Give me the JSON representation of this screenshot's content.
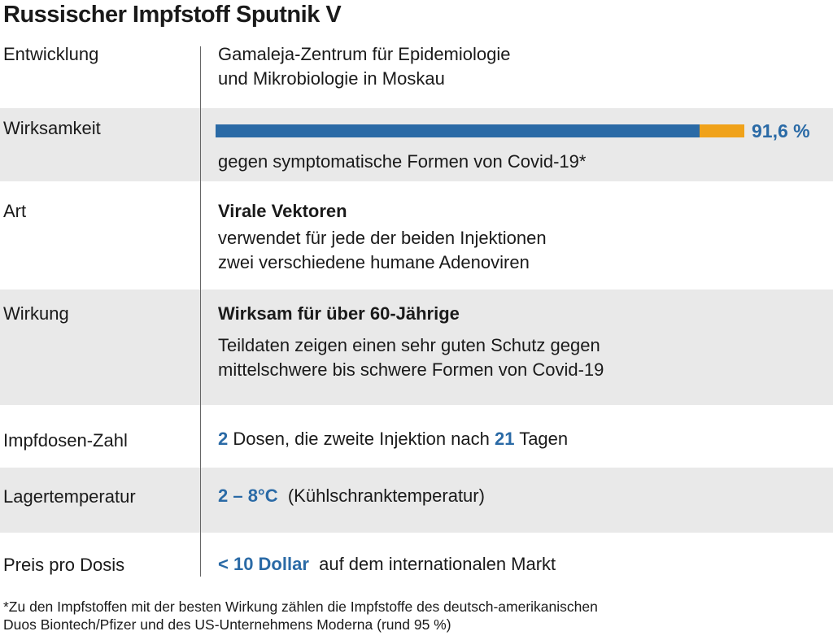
{
  "title": "Russischer Impfstoff Sputnik V",
  "rows": {
    "entwicklung": {
      "label": "Entwicklung",
      "line1": "Gamaleja-Zentrum für Epidemiologie",
      "line2": "und Mikrobiologie in Moskau"
    },
    "wirksamkeit": {
      "label": "Wirksamkeit",
      "value_text": "91,6 %",
      "value_percent": 91.6,
      "caption": "gegen symptomatische Formen von Covid-19*"
    },
    "art": {
      "label": "Art",
      "heading": "Virale Vektoren",
      "line1": "verwendet für jede der beiden Injektionen",
      "line2": "zwei verschiedene humane Adenoviren"
    },
    "wirkung": {
      "label": "Wirkung",
      "heading": "Wirksam für über 60-Jährige",
      "line1": "Teildaten zeigen einen sehr guten Schutz gegen",
      "line2": "mittelschwere bis schwere Formen von Covid-19"
    },
    "impfdosen": {
      "label": "Impfdosen-Zahl",
      "num1": "2",
      "text1": " Dosen, die zweite Injektion nach ",
      "num2": "21",
      "text2": " Tagen"
    },
    "lagertemperatur": {
      "label": "Lagertemperatur",
      "highlight": "2 – 8°C",
      "text": "  (Kühlschranktemperatur)"
    },
    "preis": {
      "label": "Preis pro Dosis",
      "highlight": "< 10 Dollar",
      "text": "  auf dem internationalen Markt"
    }
  },
  "footnote": {
    "line1": "*Zu den Impfstoffen mit der besten Wirkung zählen die Impfstoffe des deutsch-amerikanischen",
    "line2": "Duos Biontech/Pfizer und des US-Unternehmens Moderna (rund 95 %)"
  },
  "colors": {
    "accent_blue": "#2a6aa6",
    "accent_orange": "#f0a21a",
    "row_shade": "#e9e9e9"
  }
}
